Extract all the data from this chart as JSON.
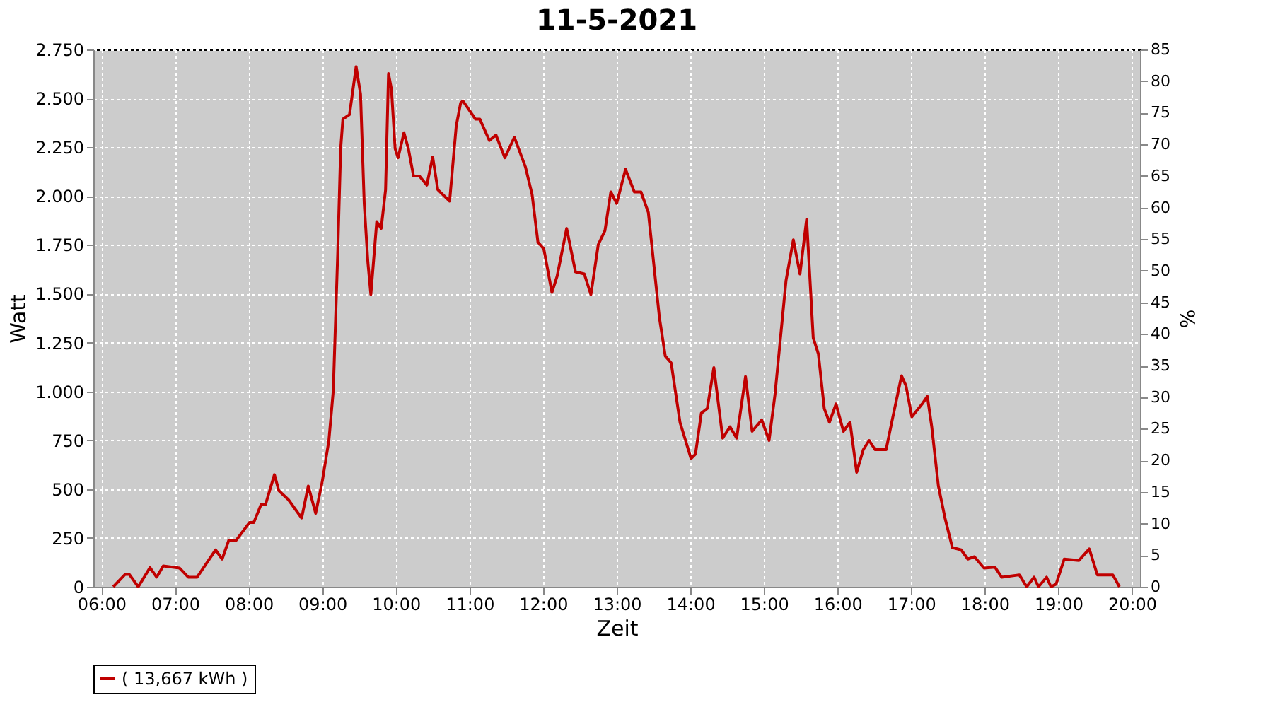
{
  "chart_data": {
    "type": "line",
    "title": "11-5-2021",
    "xlabel": "Zeit",
    "ylabel": "Watt",
    "y2label": "%",
    "xlim": [
      5.89,
      20.11
    ],
    "xticks": [
      {
        "value": 6,
        "label": "06:00"
      },
      {
        "value": 7,
        "label": "07:00"
      },
      {
        "value": 8,
        "label": "08:00"
      },
      {
        "value": 9,
        "label": "09:00"
      },
      {
        "value": 10,
        "label": "10:00"
      },
      {
        "value": 11,
        "label": "11:00"
      },
      {
        "value": 12,
        "label": "12:00"
      },
      {
        "value": 13,
        "label": "13:00"
      },
      {
        "value": 14,
        "label": "14:00"
      },
      {
        "value": 15,
        "label": "15:00"
      },
      {
        "value": 16,
        "label": "16:00"
      },
      {
        "value": 17,
        "label": "17:00"
      },
      {
        "value": 18,
        "label": "18:00"
      },
      {
        "value": 19,
        "label": "19:00"
      },
      {
        "value": 20,
        "label": "20:00"
      }
    ],
    "ylim": [
      0,
      2750
    ],
    "yticks": [
      0,
      250,
      500,
      750,
      {
        "value": 1000,
        "label": "1.000"
      },
      {
        "value": 1250,
        "label": "1.250"
      },
      {
        "value": 1500,
        "label": "1.500"
      },
      {
        "value": 1750,
        "label": "1.750"
      },
      {
        "value": 2000,
        "label": "2.000"
      },
      {
        "value": 2250,
        "label": "2.250"
      },
      {
        "value": 2500,
        "label": "2.500"
      },
      {
        "value": 2750,
        "label": "2.750"
      }
    ],
    "y2lim": [
      0,
      85
    ],
    "y2ticks": [
      0,
      5,
      10,
      15,
      20,
      25,
      30,
      35,
      40,
      45,
      50,
      55,
      60,
      65,
      70,
      75,
      80,
      85
    ],
    "grid": true,
    "legend": "bottom",
    "marker": "none",
    "line_style": "solid",
    "series": [
      {
        "name": "( 13,667 kWh )",
        "color": "#c00000",
        "x": [
          6.16,
          6.32,
          6.38,
          6.5,
          6.66,
          6.75,
          6.84,
          7.06,
          7.18,
          7.3,
          7.55,
          7.64,
          7.73,
          7.83,
          8.01,
          8.07,
          8.17,
          8.23,
          8.35,
          8.41,
          8.54,
          8.72,
          8.81,
          8.91,
          9.0,
          9.09,
          9.15,
          9.21,
          9.25,
          9.28,
          9.37,
          9.46,
          9.52,
          9.57,
          9.62,
          9.66,
          9.74,
          9.8,
          9.86,
          9.9,
          9.94,
          9.99,
          10.03,
          10.11,
          10.17,
          10.24,
          10.32,
          10.42,
          10.5,
          10.57,
          10.73,
          10.82,
          10.88,
          10.91,
          11.08,
          11.14,
          11.27,
          11.36,
          11.48,
          11.61,
          11.76,
          11.85,
          11.93,
          12.01,
          12.12,
          12.19,
          12.32,
          12.44,
          12.56,
          12.65,
          12.75,
          12.84,
          12.92,
          13.0,
          13.12,
          13.24,
          13.33,
          13.43,
          13.58,
          13.66,
          13.74,
          13.86,
          14.01,
          14.07,
          14.15,
          14.23,
          14.32,
          14.44,
          14.54,
          14.63,
          14.75,
          14.84,
          14.97,
          15.07,
          15.15,
          15.3,
          15.4,
          15.49,
          15.58,
          15.67,
          15.74,
          15.82,
          15.89,
          15.98,
          16.08,
          16.17,
          16.26,
          16.35,
          16.43,
          16.51,
          16.66,
          16.75,
          16.87,
          16.93,
          17.01,
          17.15,
          17.22,
          17.28,
          17.37,
          17.46,
          17.56,
          17.68,
          17.77,
          17.86,
          17.99,
          18.14,
          18.23,
          18.47,
          18.57,
          18.67,
          18.73,
          18.84,
          18.9,
          18.97,
          19.08,
          19.28,
          19.42,
          19.53,
          19.74,
          19.83
        ],
        "values": [
          0,
          63,
          63,
          0,
          98,
          49,
          107,
          96,
          49,
          49,
          189,
          142,
          238,
          238,
          329,
          329,
          422,
          422,
          574,
          492,
          446,
          352,
          516,
          376,
          539,
          749,
          1006,
          1706,
          2242,
          2394,
          2417,
          2662,
          2522,
          1962,
          1659,
          1496,
          1869,
          1834,
          2032,
          2627,
          2546,
          2242,
          2196,
          2324,
          2242,
          2102,
          2102,
          2056,
          2200,
          2032,
          1974,
          2359,
          2476,
          2487,
          2394,
          2394,
          2284,
          2312,
          2196,
          2301,
          2149,
          2009,
          1764,
          1729,
          1507,
          1589,
          1834,
          1612,
          1601,
          1496,
          1752,
          1822,
          2021,
          1962,
          2137,
          2021,
          2021,
          1916,
          1379,
          1181,
          1146,
          842,
          656,
          679,
          889,
          912,
          1122,
          761,
          819,
          761,
          1076,
          796,
          854,
          749,
          982,
          1566,
          1776,
          1601,
          1881,
          1274,
          1192,
          912,
          842,
          936,
          796,
          842,
          586,
          702,
          749,
          702,
          702,
          866,
          1080,
          1029,
          870,
          936,
          975,
          819,
          516,
          352,
          201,
          189,
          142,
          154,
          96,
          100,
          49,
          61,
          0,
          49,
          0,
          49,
          0,
          14,
          142,
          135,
          194,
          61,
          61,
          0
        ]
      }
    ]
  }
}
